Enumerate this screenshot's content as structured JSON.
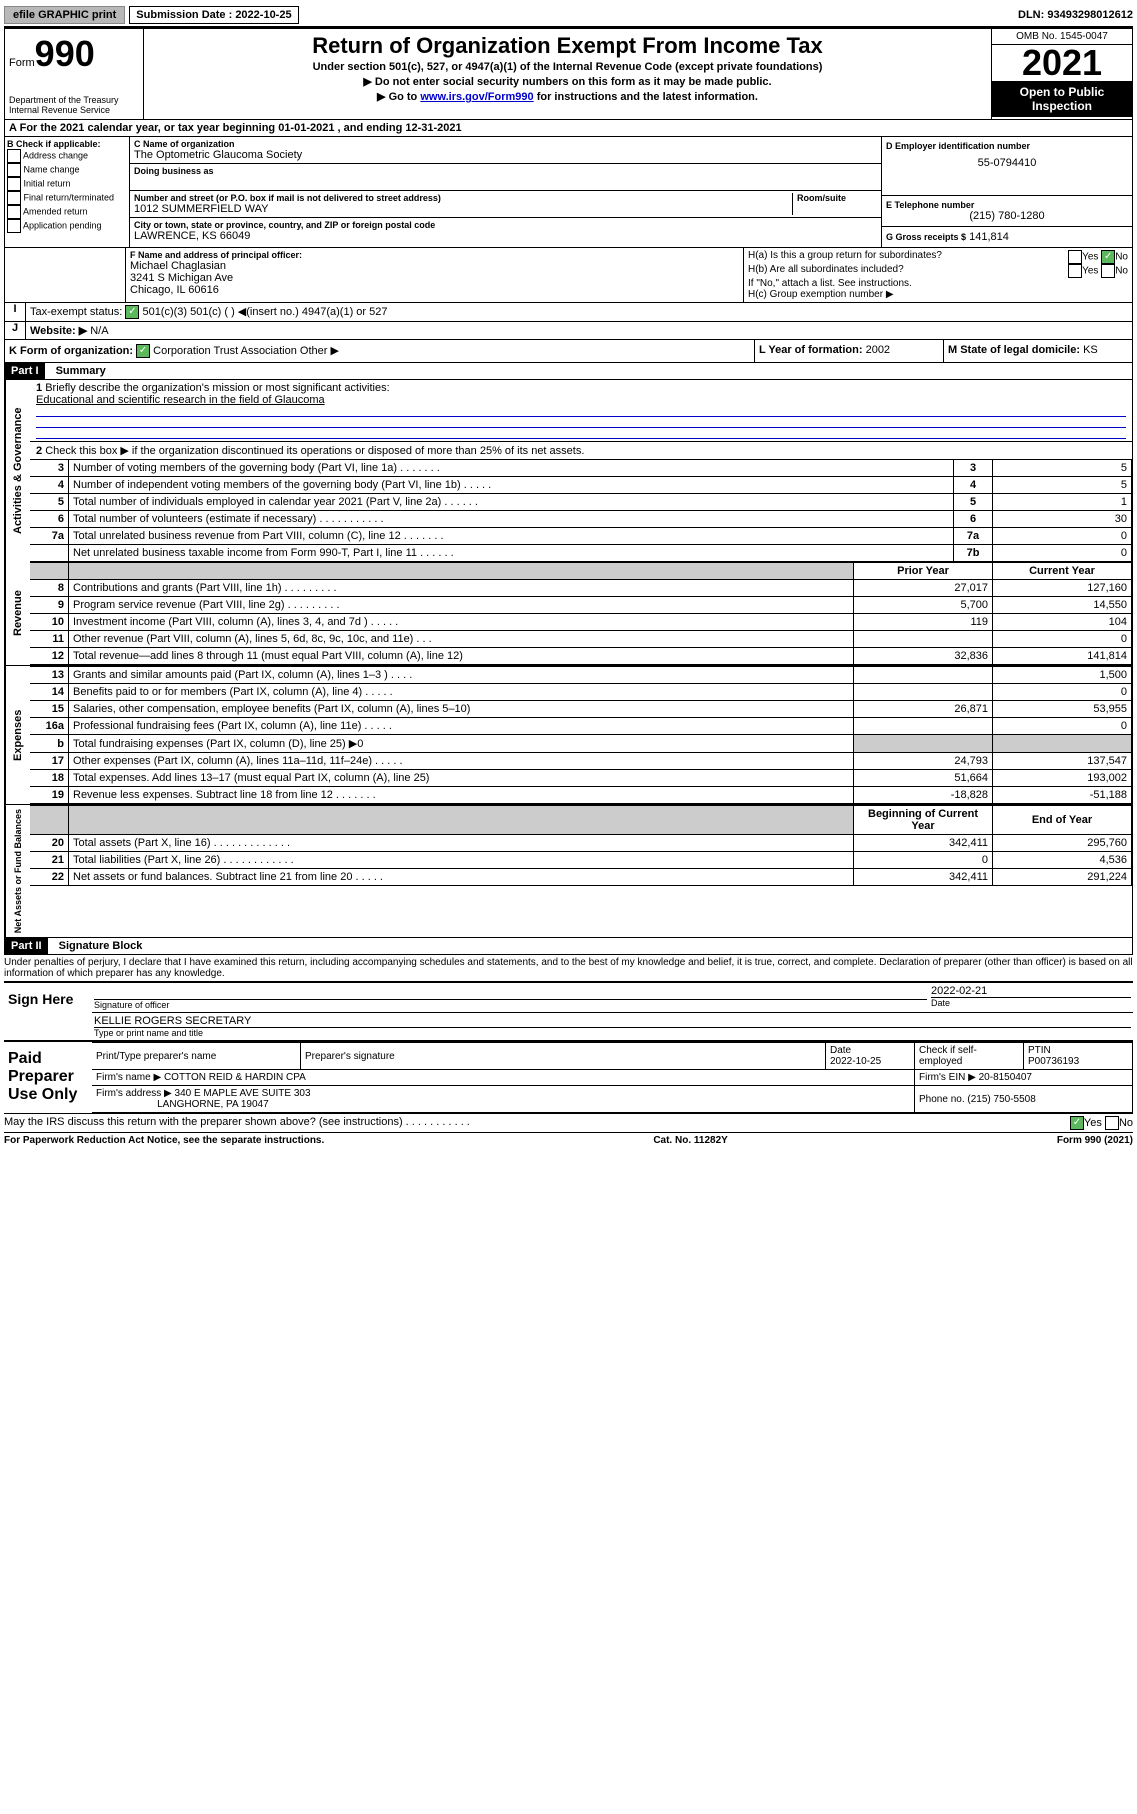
{
  "topbar": {
    "efile": "efile GRAPHIC print",
    "sub_label": "Submission Date : 2022-10-25",
    "dln": "DLN: 93493298012612"
  },
  "header": {
    "form_word": "Form",
    "form_num": "990",
    "title": "Return of Organization Exempt From Income Tax",
    "sub1": "Under section 501(c), 527, or 4947(a)(1) of the Internal Revenue Code (except private foundations)",
    "sub2": "▶ Do not enter social security numbers on this form as it may be made public.",
    "sub3_pre": "▶ Go to ",
    "sub3_link": "www.irs.gov/Form990",
    "sub3_post": " for instructions and the latest information.",
    "dept": "Department of the Treasury\nInternal Revenue Service",
    "omb": "OMB No. 1545-0047",
    "year": "2021",
    "inspect": "Open to Public Inspection"
  },
  "lineA": "For the 2021 calendar year, or tax year beginning 01-01-2021   , and ending 12-31-2021",
  "boxB": {
    "title": "B Check if applicable:",
    "opts": [
      "Address change",
      "Name change",
      "Initial return",
      "Final return/terminated",
      "Amended return",
      "Application pending"
    ]
  },
  "boxC": {
    "label": "C Name of organization",
    "name": "The Optometric Glaucoma Society",
    "dba_label": "Doing business as",
    "addr_label": "Number and street (or P.O. box if mail is not delivered to street address)",
    "room": "Room/suite",
    "addr": "1012 SUMMERFIELD WAY",
    "city_label": "City or town, state or province, country, and ZIP or foreign postal code",
    "city": "LAWRENCE, KS  66049"
  },
  "boxD": {
    "label": "D Employer identification number",
    "val": "55-0794410"
  },
  "boxE": {
    "label": "E Telephone number",
    "val": "(215) 780-1280"
  },
  "boxG": {
    "label": "G Gross receipts $",
    "val": "141,814"
  },
  "boxF": {
    "label": "F Name and address of principal officer:",
    "line1": "Michael Chaglasian",
    "line2": "3241 S Michigan Ave",
    "line3": "Chicago, IL  60616"
  },
  "boxH": {
    "a": "H(a)  Is this a group return for subordinates?",
    "b": "H(b)  Are all subordinates included?",
    "note": "If \"No,\" attach a list. See instructions.",
    "c": "H(c)  Group exemption number ▶"
  },
  "boxI": {
    "label": "Tax-exempt status:",
    "opts": "501(c)(3)        501(c) (  ) ◀(insert no.)        4947(a)(1) or        527"
  },
  "boxJ": {
    "label": "Website: ▶",
    "val": "N/A"
  },
  "boxK": {
    "label": "K Form of organization:",
    "opts": "Corporation     Trust     Association     Other ▶"
  },
  "boxL": {
    "label": "L Year of formation:",
    "val": "2002"
  },
  "boxM": {
    "label": "M State of legal domicile:",
    "val": "KS"
  },
  "part1": {
    "title": "Part I",
    "sub": "Summary",
    "q1": "Briefly describe the organization's mission or most significant activities:",
    "q1a": "Educational and scientific research in the field of Glaucoma",
    "q2": "Check this box ▶     if the organization discontinued its operations or disposed of more than 25% of its net assets.",
    "gov_label": "Activities & Governance",
    "rev_label": "Revenue",
    "exp_label": "Expenses",
    "net_label": "Net Assets or Fund Balances",
    "cols": {
      "prior": "Prior Year",
      "current": "Current Year",
      "beg": "Beginning of Current Year",
      "end": "End of Year"
    },
    "lines_gov": [
      {
        "n": "3",
        "d": "Number of voting members of the governing body (Part VI, line 1a)   .    .    .    .    .    .    .",
        "b": "3",
        "v": "5"
      },
      {
        "n": "4",
        "d": "Number of independent voting members of the governing body (Part VI, line 1b)   .    .    .    .    .",
        "b": "4",
        "v": "5"
      },
      {
        "n": "5",
        "d": "Total number of individuals employed in calendar year 2021 (Part V, line 2a)   .    .    .    .    .    .",
        "b": "5",
        "v": "1"
      },
      {
        "n": "6",
        "d": "Total number of volunteers (estimate if necessary)   .    .    .    .    .    .    .    .    .    .    .",
        "b": "6",
        "v": "30"
      },
      {
        "n": "7a",
        "d": "Total unrelated business revenue from Part VIII, column (C), line 12   .    .    .    .    .    .    .",
        "b": "7a",
        "v": "0"
      },
      {
        "n": "",
        "d": "Net unrelated business taxable income from Form 990-T, Part I, line 11   .    .    .    .    .    .",
        "b": "7b",
        "v": "0"
      }
    ],
    "lines_rev": [
      {
        "n": "8",
        "d": "Contributions and grants (Part VIII, line 1h)   .    .    .    .    .    .    .    .    .",
        "p": "27,017",
        "c": "127,160"
      },
      {
        "n": "9",
        "d": "Program service revenue (Part VIII, line 2g)   .    .    .    .    .    .    .    .    .",
        "p": "5,700",
        "c": "14,550"
      },
      {
        "n": "10",
        "d": "Investment income (Part VIII, column (A), lines 3, 4, and 7d )   .    .    .    .    .",
        "p": "119",
        "c": "104"
      },
      {
        "n": "11",
        "d": "Other revenue (Part VIII, column (A), lines 5, 6d, 8c, 9c, 10c, and 11e)   .    .    .",
        "p": "",
        "c": "0"
      },
      {
        "n": "12",
        "d": "Total revenue—add lines 8 through 11 (must equal Part VIII, column (A), line 12)",
        "p": "32,836",
        "c": "141,814"
      }
    ],
    "lines_exp": [
      {
        "n": "13",
        "d": "Grants and similar amounts paid (Part IX, column (A), lines 1–3 )   .    .    .    .",
        "p": "",
        "c": "1,500"
      },
      {
        "n": "14",
        "d": "Benefits paid to or for members (Part IX, column (A), line 4)   .    .    .    .    .",
        "p": "",
        "c": "0"
      },
      {
        "n": "15",
        "d": "Salaries, other compensation, employee benefits (Part IX, column (A), lines 5–10)",
        "p": "26,871",
        "c": "53,955"
      },
      {
        "n": "16a",
        "d": "Professional fundraising fees (Part IX, column (A), line 11e)   .    .    .    .    .",
        "p": "",
        "c": "0"
      },
      {
        "n": "b",
        "d": "Total fundraising expenses (Part IX, column (D), line 25) ▶0",
        "p": "shade",
        "c": "shade"
      },
      {
        "n": "17",
        "d": "Other expenses (Part IX, column (A), lines 11a–11d, 11f–24e)   .    .    .    .    .",
        "p": "24,793",
        "c": "137,547"
      },
      {
        "n": "18",
        "d": "Total expenses. Add lines 13–17 (must equal Part IX, column (A), line 25)",
        "p": "51,664",
        "c": "193,002"
      },
      {
        "n": "19",
        "d": "Revenue less expenses. Subtract line 18 from line 12   .    .    .    .    .    .    .",
        "p": "-18,828",
        "c": "-51,188"
      }
    ],
    "lines_net": [
      {
        "n": "20",
        "d": "Total assets (Part X, line 16)   .    .    .    .    .    .    .    .    .    .    .    .    .",
        "p": "342,411",
        "c": "295,760"
      },
      {
        "n": "21",
        "d": "Total liabilities (Part X, line 26)   .    .    .    .    .    .    .    .    .    .    .    .",
        "p": "0",
        "c": "4,536"
      },
      {
        "n": "22",
        "d": "Net assets or fund balances. Subtract line 21 from line 20   .    .    .    .    .",
        "p": "342,411",
        "c": "291,224"
      }
    ]
  },
  "part2": {
    "title": "Part II",
    "sub": "Signature Block",
    "decl": "Under penalties of perjury, I declare that I have examined this return, including accompanying schedules and statements, and to the best of my knowledge and belief, it is true, correct, and complete. Declaration of preparer (other than officer) is based on all information of which preparer has any knowledge.",
    "sign_here": "Sign Here",
    "sig_officer": "Signature of officer",
    "date1": "2022-02-21",
    "date_label": "Date",
    "name_title": "KELLIE ROGERS SECRETARY",
    "type_label": "Type or print name and title",
    "paid": "Paid Preparer Use Only",
    "prep_name_label": "Print/Type preparer's name",
    "prep_sig_label": "Preparer's signature",
    "prep_date": "2022-10-25",
    "check_if": "Check     if self-employed",
    "ptin_label": "PTIN",
    "ptin": "P00736193",
    "firm_name_label": "Firm's name    ▶",
    "firm_name": "COTTON REID & HARDIN CPA",
    "firm_ein_label": "Firm's EIN ▶",
    "firm_ein": "20-8150407",
    "firm_addr_label": "Firm's address ▶",
    "firm_addr1": "340 E MAPLE AVE SUITE 303",
    "firm_addr2": "LANGHORNE, PA  19047",
    "phone_label": "Phone no.",
    "phone": "(215) 750-5508",
    "discuss": "May the IRS discuss this return with the preparer shown above? (see instructions)   .    .    .    .    .    .    .    .    .    .    .",
    "yes": "Yes",
    "no": "No"
  },
  "footer": {
    "left": "For Paperwork Reduction Act Notice, see the separate instructions.",
    "mid": "Cat. No. 11282Y",
    "right": "Form 990 (2021)"
  }
}
